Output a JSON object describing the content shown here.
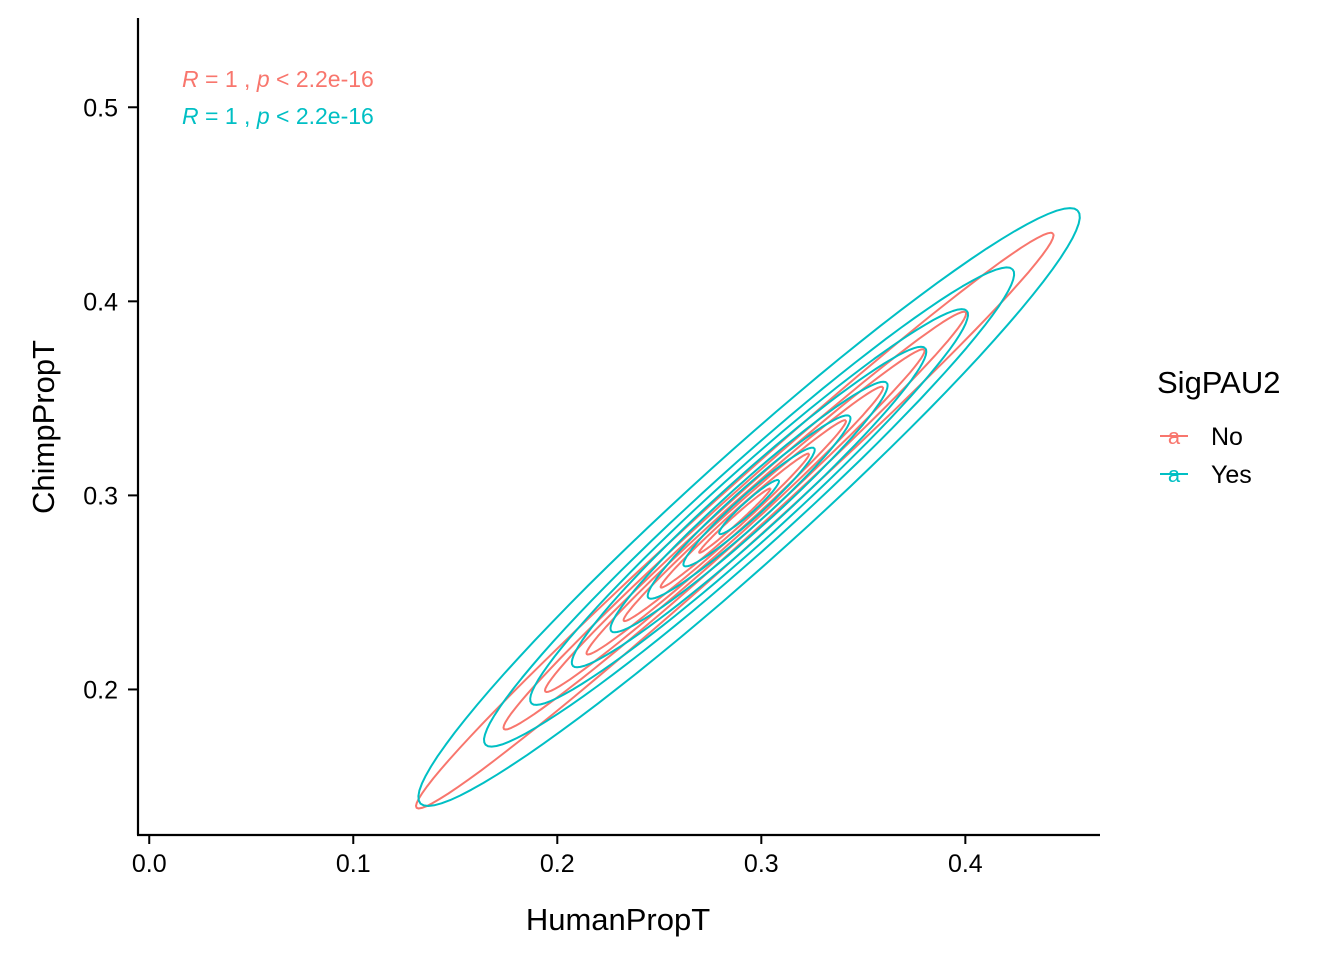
{
  "chart_data": {
    "type": "contour",
    "title": "",
    "xlabel": "HumanPropT",
    "ylabel": "ChimpPropT",
    "xlim": [
      -0.006,
      0.466
    ],
    "ylim": [
      0.125,
      0.546
    ],
    "x_ticks": [
      {
        "value": 0.0,
        "label": "0.0"
      },
      {
        "value": 0.1,
        "label": "0.1"
      },
      {
        "value": 0.2,
        "label": "0.2"
      },
      {
        "value": 0.3,
        "label": "0.3"
      },
      {
        "value": 0.4,
        "label": "0.4"
      }
    ],
    "y_ticks": [
      {
        "value": 0.2,
        "label": "0.2"
      },
      {
        "value": 0.3,
        "label": "0.3"
      },
      {
        "value": 0.4,
        "label": "0.4"
      },
      {
        "value": 0.5,
        "label": "0.5"
      }
    ],
    "grid": false,
    "legend": {
      "title": "SigPAU2",
      "position": "right",
      "key_glyph": "a",
      "entries": [
        {
          "label": "No",
          "color": "#F8766D"
        },
        {
          "label": "Yes",
          "color": "#00BFC4"
        }
      ]
    },
    "annotations": [
      {
        "R": "R",
        "eq": " = 1 , ",
        "p": "p",
        "rest": " < 2.2e-16",
        "color": "#F8766D"
      },
      {
        "R": "R",
        "eq": " = 1 , ",
        "p": "p",
        "rest": " < 2.2e-16",
        "color": "#00BFC4"
      }
    ],
    "series": [
      {
        "name": "No",
        "color": "#F8766D",
        "contours": [
          {
            "cx": 0.287,
            "cy": 0.287,
            "rx": 0.215,
            "ry": 0.014,
            "angle_deg": 43.5
          },
          {
            "cx": 0.287,
            "cy": 0.287,
            "rx": 0.156,
            "ry": 0.0105,
            "angle_deg": 43.5
          },
          {
            "cx": 0.287,
            "cy": 0.287,
            "rx": 0.128,
            "ry": 0.0085,
            "angle_deg": 43.5
          },
          {
            "cx": 0.287,
            "cy": 0.287,
            "rx": 0.1,
            "ry": 0.0068,
            "angle_deg": 43.5
          },
          {
            "cx": 0.287,
            "cy": 0.287,
            "rx": 0.075,
            "ry": 0.0052,
            "angle_deg": 43.5
          },
          {
            "cx": 0.287,
            "cy": 0.287,
            "rx": 0.05,
            "ry": 0.0036,
            "angle_deg": 43.5
          },
          {
            "cx": 0.287,
            "cy": 0.287,
            "rx": 0.024,
            "ry": 0.0019,
            "angle_deg": 43.5
          }
        ]
      },
      {
        "name": "Yes",
        "color": "#00BFC4",
        "contours": [
          {
            "cx": 0.294,
            "cy": 0.294,
            "rx": 0.222,
            "ry": 0.027,
            "angle_deg": 43.5
          },
          {
            "cx": 0.294,
            "cy": 0.294,
            "rx": 0.178,
            "ry": 0.021,
            "angle_deg": 43.5
          },
          {
            "cx": 0.294,
            "cy": 0.294,
            "rx": 0.147,
            "ry": 0.0175,
            "angle_deg": 43.5
          },
          {
            "cx": 0.294,
            "cy": 0.294,
            "rx": 0.119,
            "ry": 0.0145,
            "angle_deg": 43.5
          },
          {
            "cx": 0.294,
            "cy": 0.294,
            "rx": 0.093,
            "ry": 0.0115,
            "angle_deg": 43.5
          },
          {
            "cx": 0.294,
            "cy": 0.294,
            "rx": 0.068,
            "ry": 0.0088,
            "angle_deg": 43.5
          },
          {
            "cx": 0.294,
            "cy": 0.294,
            "rx": 0.044,
            "ry": 0.006,
            "angle_deg": 43.5
          },
          {
            "cx": 0.294,
            "cy": 0.294,
            "rx": 0.02,
            "ry": 0.003,
            "angle_deg": 43.5
          }
        ]
      }
    ]
  }
}
